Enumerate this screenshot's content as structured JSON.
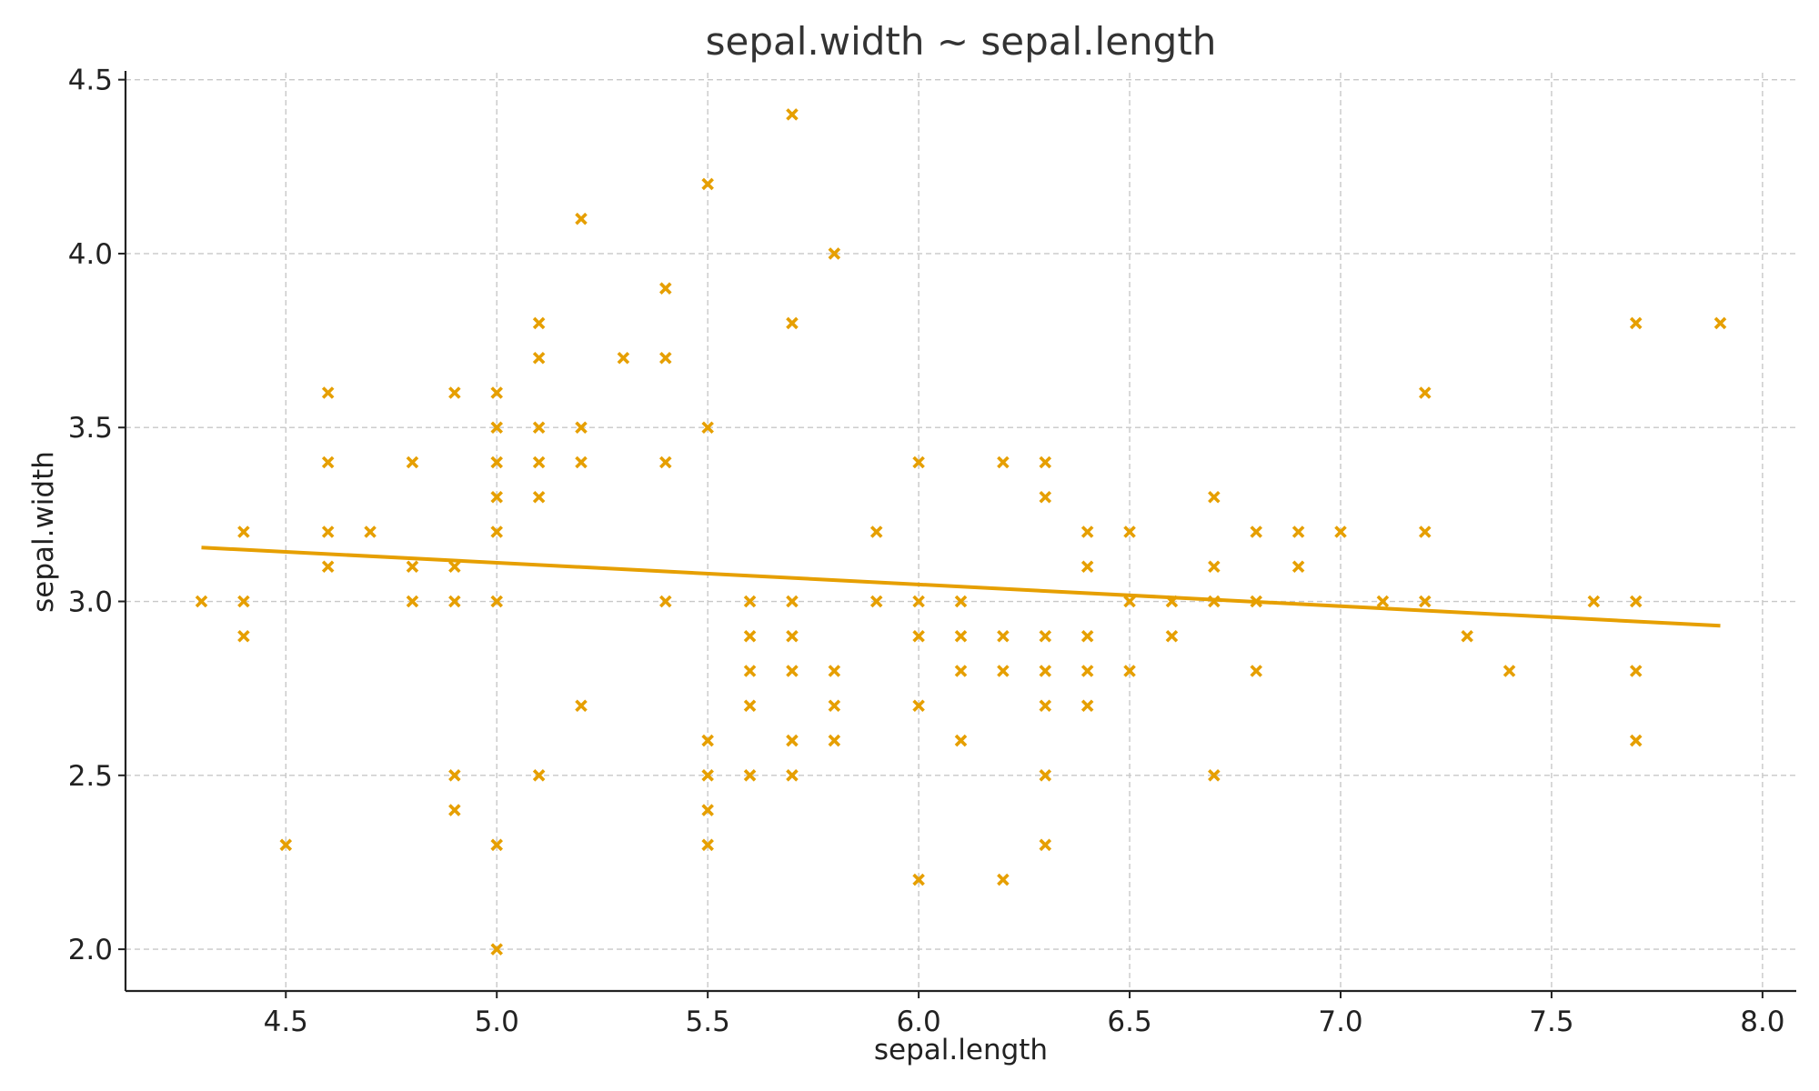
{
  "chart_data": {
    "type": "scatter",
    "title": "sepal.width ~ sepal.length",
    "xlabel": "sepal.length",
    "ylabel": "sepal.width",
    "xlim": [
      4.12,
      8.08
    ],
    "ylim": [
      1.88,
      4.52
    ],
    "xticks": [
      4.5,
      5.0,
      5.5,
      6.0,
      6.5,
      7.0,
      7.5,
      8.0
    ],
    "xtick_labels": [
      "4.5",
      "5.0",
      "5.5",
      "6.0",
      "6.5",
      "7.0",
      "7.5",
      "8.0"
    ],
    "yticks": [
      2.0,
      2.5,
      3.0,
      3.5,
      4.0,
      4.5
    ],
    "ytick_labels": [
      "2.0",
      "2.5",
      "3.0",
      "3.5",
      "4.0",
      "4.5"
    ],
    "grid": true,
    "marker": "x",
    "color": "#E69F00",
    "series": [
      {
        "type": "scatter",
        "points": [
          [
            4.3,
            3.0
          ],
          [
            4.4,
            3.2
          ],
          [
            4.4,
            3.0
          ],
          [
            4.4,
            2.9
          ],
          [
            4.5,
            2.3
          ],
          [
            4.6,
            3.6
          ],
          [
            4.6,
            3.4
          ],
          [
            4.6,
            3.2
          ],
          [
            4.6,
            3.1
          ],
          [
            4.7,
            3.2
          ],
          [
            4.8,
            3.4
          ],
          [
            4.8,
            3.1
          ],
          [
            4.8,
            3.0
          ],
          [
            4.9,
            3.6
          ],
          [
            4.9,
            3.1
          ],
          [
            4.9,
            3.0
          ],
          [
            4.9,
            2.5
          ],
          [
            4.9,
            2.4
          ],
          [
            5.0,
            3.6
          ],
          [
            5.0,
            3.5
          ],
          [
            5.0,
            3.4
          ],
          [
            5.0,
            3.3
          ],
          [
            5.0,
            3.2
          ],
          [
            5.0,
            3.0
          ],
          [
            5.0,
            2.3
          ],
          [
            5.0,
            2.0
          ],
          [
            5.1,
            3.8
          ],
          [
            5.1,
            3.7
          ],
          [
            5.1,
            3.5
          ],
          [
            5.1,
            3.4
          ],
          [
            5.1,
            3.3
          ],
          [
            5.1,
            2.5
          ],
          [
            5.2,
            4.1
          ],
          [
            5.2,
            3.5
          ],
          [
            5.2,
            3.4
          ],
          [
            5.2,
            2.7
          ],
          [
            5.3,
            3.7
          ],
          [
            5.4,
            3.9
          ],
          [
            5.4,
            3.7
          ],
          [
            5.4,
            3.4
          ],
          [
            5.4,
            3.0
          ],
          [
            5.5,
            4.2
          ],
          [
            5.5,
            3.5
          ],
          [
            5.5,
            2.6
          ],
          [
            5.5,
            2.5
          ],
          [
            5.5,
            2.4
          ],
          [
            5.5,
            2.3
          ],
          [
            5.6,
            3.0
          ],
          [
            5.6,
            2.9
          ],
          [
            5.6,
            2.8
          ],
          [
            5.6,
            2.7
          ],
          [
            5.6,
            2.5
          ],
          [
            5.7,
            4.4
          ],
          [
            5.7,
            3.8
          ],
          [
            5.7,
            3.0
          ],
          [
            5.7,
            2.9
          ],
          [
            5.7,
            2.8
          ],
          [
            5.7,
            2.6
          ],
          [
            5.7,
            2.5
          ],
          [
            5.8,
            4.0
          ],
          [
            5.8,
            2.8
          ],
          [
            5.8,
            2.7
          ],
          [
            5.8,
            2.6
          ],
          [
            5.9,
            3.2
          ],
          [
            5.9,
            3.0
          ],
          [
            6.0,
            3.4
          ],
          [
            6.0,
            3.0
          ],
          [
            6.0,
            2.9
          ],
          [
            6.0,
            2.7
          ],
          [
            6.0,
            2.2
          ],
          [
            6.1,
            3.0
          ],
          [
            6.1,
            2.9
          ],
          [
            6.1,
            2.8
          ],
          [
            6.1,
            2.6
          ],
          [
            6.2,
            3.4
          ],
          [
            6.2,
            2.9
          ],
          [
            6.2,
            2.8
          ],
          [
            6.2,
            2.2
          ],
          [
            6.3,
            3.4
          ],
          [
            6.3,
            3.3
          ],
          [
            6.3,
            2.9
          ],
          [
            6.3,
            2.8
          ],
          [
            6.3,
            2.7
          ],
          [
            6.3,
            2.5
          ],
          [
            6.3,
            2.3
          ],
          [
            6.4,
            3.2
          ],
          [
            6.4,
            3.1
          ],
          [
            6.4,
            2.9
          ],
          [
            6.4,
            2.8
          ],
          [
            6.4,
            2.7
          ],
          [
            6.5,
            3.2
          ],
          [
            6.5,
            3.0
          ],
          [
            6.5,
            2.8
          ],
          [
            6.6,
            3.0
          ],
          [
            6.6,
            2.9
          ],
          [
            6.7,
            3.3
          ],
          [
            6.7,
            3.1
          ],
          [
            6.7,
            3.0
          ],
          [
            6.7,
            2.5
          ],
          [
            6.8,
            3.2
          ],
          [
            6.8,
            3.0
          ],
          [
            6.8,
            2.8
          ],
          [
            6.9,
            3.2
          ],
          [
            6.9,
            3.1
          ],
          [
            7.0,
            3.2
          ],
          [
            7.1,
            3.0
          ],
          [
            7.2,
            3.6
          ],
          [
            7.2,
            3.2
          ],
          [
            7.2,
            3.0
          ],
          [
            7.3,
            2.9
          ],
          [
            7.4,
            2.8
          ],
          [
            7.6,
            3.0
          ],
          [
            7.7,
            3.8
          ],
          [
            7.7,
            3.0
          ],
          [
            7.7,
            2.8
          ],
          [
            7.7,
            2.6
          ],
          [
            7.9,
            3.8
          ]
        ]
      },
      {
        "type": "line",
        "points": [
          [
            4.3,
            3.155
          ],
          [
            7.9,
            2.93
          ]
        ]
      }
    ]
  }
}
